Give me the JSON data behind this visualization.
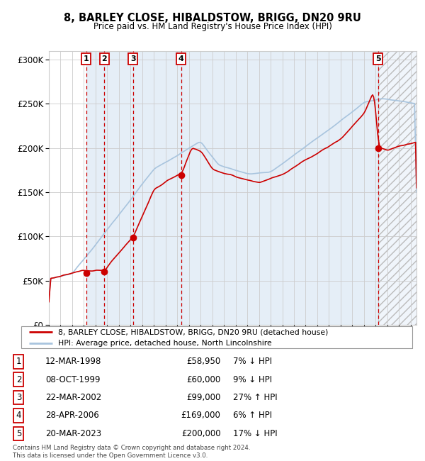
{
  "title": "8, BARLEY CLOSE, HIBALDSTOW, BRIGG, DN20 9RU",
  "subtitle": "Price paid vs. HM Land Registry's House Price Index (HPI)",
  "ylim": [
    0,
    310000
  ],
  "xlim_start": 1995.0,
  "xlim_end": 2026.5,
  "yticks": [
    0,
    50000,
    100000,
    150000,
    200000,
    250000,
    300000
  ],
  "ytick_labels": [
    "£0",
    "£50K",
    "£100K",
    "£150K",
    "£200K",
    "£250K",
    "£300K"
  ],
  "transactions": [
    {
      "num": 1,
      "date": "12-MAR-1998",
      "price": 58950,
      "year": 1998.2,
      "pct": "7%",
      "dir": "↓"
    },
    {
      "num": 2,
      "date": "08-OCT-1999",
      "price": 60000,
      "year": 1999.75,
      "pct": "9%",
      "dir": "↓"
    },
    {
      "num": 3,
      "date": "22-MAR-2002",
      "price": 99000,
      "year": 2002.2,
      "pct": "27%",
      "dir": "↑"
    },
    {
      "num": 4,
      "date": "28-APR-2006",
      "price": 169000,
      "year": 2006.33,
      "pct": "6%",
      "dir": "↑"
    },
    {
      "num": 5,
      "date": "20-MAR-2023",
      "price": 200000,
      "year": 2023.2,
      "pct": "17%",
      "dir": "↓"
    }
  ],
  "legend_property_label": "8, BARLEY CLOSE, HIBALDSTOW, BRIGG, DN20 9RU (detached house)",
  "legend_hpi_label": "HPI: Average price, detached house, North Lincolnshire",
  "footnote": "Contains HM Land Registry data © Crown copyright and database right 2024.\nThis data is licensed under the Open Government Licence v3.0.",
  "property_color": "#cc0000",
  "hpi_color": "#a8c4de",
  "bg_shade_color": "#dae8f5",
  "hatch_color": "#bbbbbb",
  "grid_color": "#cccccc",
  "box_edge_color": "#cc0000"
}
